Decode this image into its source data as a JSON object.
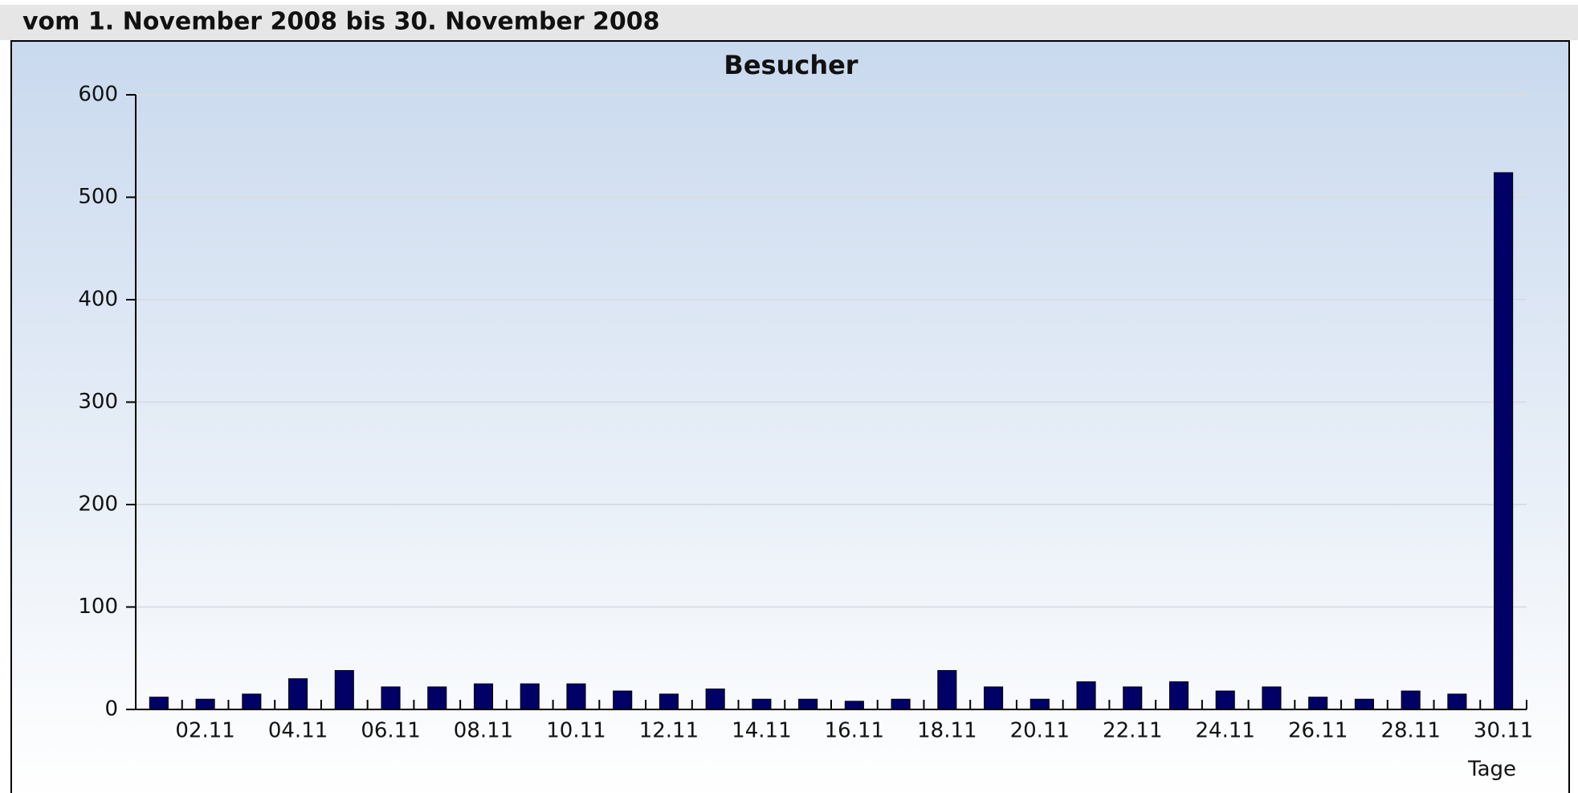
{
  "header": {
    "title": "vom 1. November 2008  bis  30. November 2008"
  },
  "chart_data": {
    "type": "bar",
    "title": "Besucher",
    "x_label": "Tage",
    "categories": [
      null,
      "02.11",
      null,
      "04.11",
      null,
      "06.11",
      null,
      "08.11",
      null,
      "10.11",
      null,
      "12.11",
      null,
      "14.11",
      null,
      "16.11",
      null,
      "18.11",
      null,
      "20.11",
      null,
      "22.11",
      null,
      "24.11",
      null,
      "26.11",
      null,
      "28.11",
      null,
      "30.11"
    ],
    "values": [
      12,
      10,
      15,
      30,
      38,
      22,
      22,
      25,
      25,
      25,
      18,
      15,
      20,
      10,
      10,
      8,
      10,
      38,
      22,
      10,
      27,
      22,
      27,
      18,
      22,
      12,
      10,
      18,
      15,
      524
    ],
    "color": "#000066",
    "ylim": [
      0,
      600
    ],
    "yticks": [
      0,
      100,
      200,
      300,
      400,
      500,
      600
    ],
    "grid": true
  }
}
